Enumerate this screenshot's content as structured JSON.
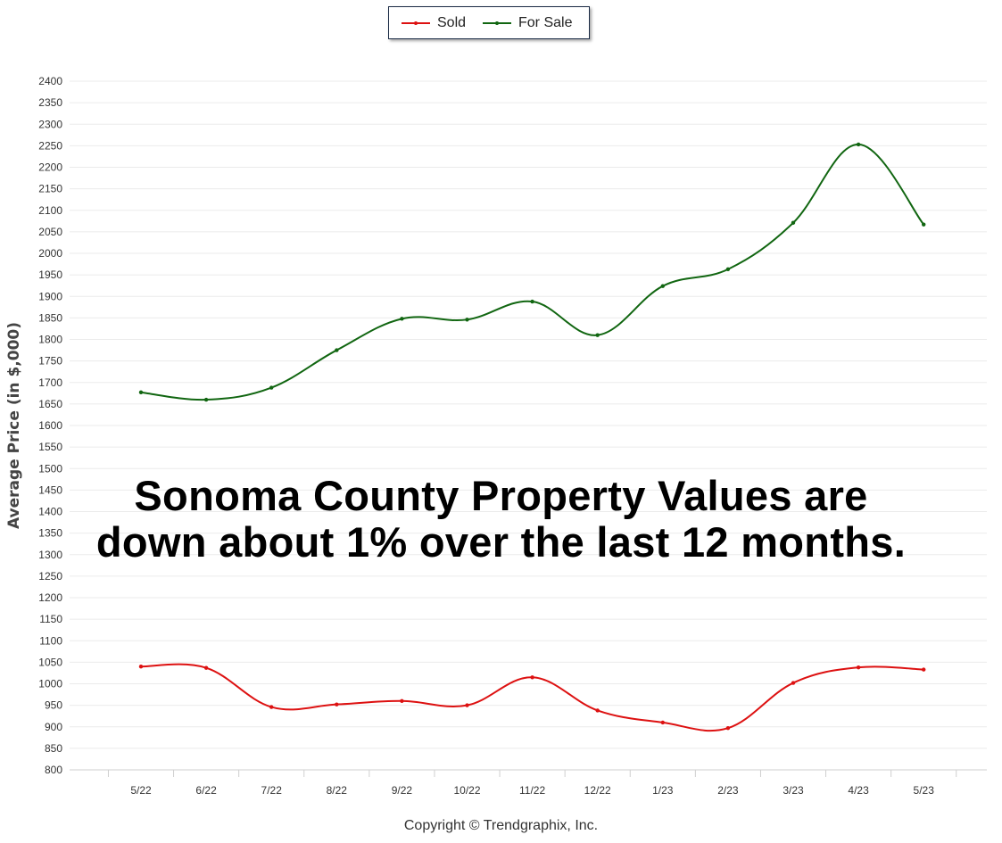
{
  "chart_data": {
    "type": "line",
    "categories": [
      "5/22",
      "6/22",
      "7/22",
      "8/22",
      "9/22",
      "10/22",
      "11/22",
      "12/22",
      "1/23",
      "2/23",
      "3/23",
      "4/23",
      "5/23"
    ],
    "series": [
      {
        "name": "Sold",
        "color": "#dd1111",
        "values": [
          1040,
          1037,
          946,
          952,
          960,
          950,
          1015,
          938,
          910,
          897,
          1002,
          1038,
          1033
        ]
      },
      {
        "name": "For Sale",
        "color": "#116611",
        "values": [
          1677,
          1660,
          1688,
          1775,
          1848,
          1846,
          1888,
          1810,
          1924,
          1963,
          2071,
          2253,
          2067
        ]
      }
    ],
    "yticks": [
      "800",
      "850",
      "900",
      "950",
      "1000",
      "1050",
      "1100",
      "1150",
      "1200",
      "1250",
      "1300",
      "1350",
      "1400",
      "1450",
      "1500",
      "1550",
      "1600",
      "1650",
      "1700",
      "1750",
      "1800",
      "1850",
      "1900",
      "1950",
      "2000",
      "2050",
      "2100",
      "2150",
      "2200",
      "2250",
      "2300",
      "2350",
      "2400"
    ],
    "ylim": [
      800,
      2400
    ],
    "ylabel": "Average Price (in $,000)",
    "xlabel": "",
    "grid": true,
    "legend_placement": "top-center",
    "annotation": [
      "Sonoma County Property Values are",
      "down about 1% over the last 12 months."
    ],
    "copyright": "Copyright © Trendgraphix, Inc."
  }
}
